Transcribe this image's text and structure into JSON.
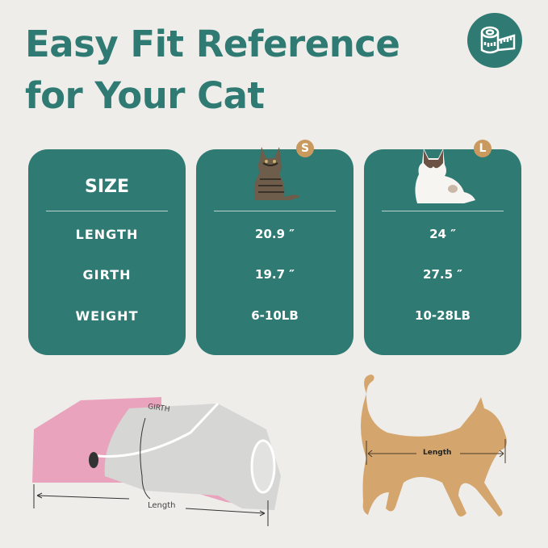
{
  "title": {
    "line1": "Easy Fit Reference",
    "line2": "for Your Cat"
  },
  "icon": "measuring-tape-icon",
  "colors": {
    "accent": "#2f7a73",
    "badge": "#c9995e",
    "background": "#efedea",
    "silhouette": "#d4a66e",
    "garment_pink": "#e9a3bd",
    "garment_gray": "#d6d6d4"
  },
  "table": {
    "labels": {
      "header": "SIZE",
      "rows": [
        "LENGTH",
        "GIRTH",
        "WEIGHT"
      ]
    },
    "sizes": [
      {
        "badge": "S",
        "values": [
          "20.9 ″",
          "19.7 ″",
          "6-10LB"
        ]
      },
      {
        "badge": "L",
        "values": [
          "24 ″",
          "27.5 ″",
          "10-28LB"
        ]
      }
    ]
  },
  "diagram": {
    "girth_label": "GIRTH",
    "garment_length_label": "Length",
    "cat_length_label": "Length"
  }
}
